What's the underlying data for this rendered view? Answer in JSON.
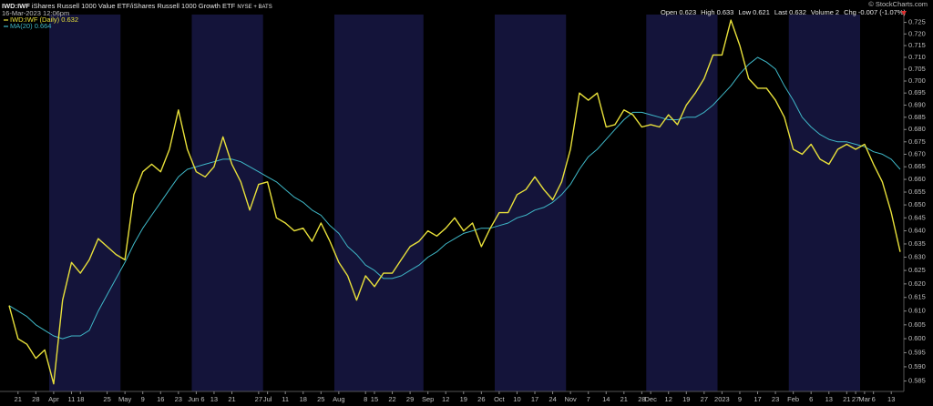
{
  "chart_data": {
    "type": "line",
    "symbol": "IWD:IWF",
    "title": "iShares Russell 1000 Value ETF/iShares Russell 1000 Growth ETF",
    "exchange": "NYSE + BATS",
    "date": "16-Mar-2023 12:06pm",
    "copyright": "© StockCharts.com",
    "quote": [
      {
        "label": "Open",
        "value": 0.623
      },
      {
        "label": "High",
        "value": 0.633
      },
      {
        "label": "Low",
        "value": 0.621
      },
      {
        "label": "Last",
        "value": 0.632
      },
      {
        "label": "Volume",
        "value": 2
      },
      {
        "label": "Chg",
        "value": "-0.007 (-1.07%)"
      }
    ],
    "log_scale": true,
    "band_color": "#14143a",
    "categories": [
      null,
      "21",
      null,
      "28",
      null,
      "Apr",
      null,
      "11",
      "18",
      null,
      null,
      "25",
      null,
      "May",
      null,
      "9",
      null,
      "16",
      null,
      "23",
      null,
      "Jun 6",
      null,
      "13",
      null,
      "21",
      null,
      null,
      "27",
      "Jul",
      null,
      "11",
      null,
      "18",
      null,
      "25",
      null,
      "Aug",
      null,
      null,
      "8",
      "15",
      null,
      "22",
      null,
      "29",
      null,
      "Sep",
      null,
      "12",
      null,
      "19",
      null,
      "26",
      null,
      "Oct",
      null,
      "10",
      null,
      "17",
      null,
      "24",
      null,
      "Nov",
      null,
      "7",
      null,
      "14",
      null,
      "21",
      null,
      "28",
      "Dec",
      null,
      "12",
      null,
      "19",
      null,
      "27",
      null,
      "2023",
      null,
      "9",
      null,
      "17",
      null,
      "23",
      null,
      "Feb",
      null,
      "6",
      null,
      "13",
      null,
      "21",
      "27",
      "Mar",
      "6",
      null,
      "13",
      null
    ],
    "series": [
      {
        "name": "IWD:IWF (Daily)",
        "last": 0.632,
        "color": "#e8e03a",
        "values": [
          0.612,
          0.6,
          0.598,
          0.593,
          0.596,
          0.584,
          0.614,
          0.628,
          0.624,
          0.629,
          0.637,
          0.634,
          0.631,
          0.629,
          0.654,
          0.663,
          0.666,
          0.663,
          0.672,
          0.688,
          0.672,
          0.663,
          0.661,
          0.665,
          0.677,
          0.666,
          0.659,
          0.648,
          0.658,
          0.659,
          0.645,
          0.643,
          0.64,
          0.641,
          0.636,
          0.643,
          0.636,
          0.628,
          0.623,
          0.614,
          0.623,
          0.619,
          0.624,
          0.624,
          0.629,
          0.634,
          0.636,
          0.64,
          0.638,
          0.641,
          0.645,
          0.64,
          0.643,
          0.634,
          0.641,
          0.647,
          0.647,
          0.654,
          0.656,
          0.661,
          0.656,
          0.652,
          0.659,
          0.672,
          0.695,
          0.692,
          0.695,
          0.681,
          0.682,
          0.688,
          0.686,
          0.681,
          0.682,
          0.681,
          0.686,
          0.682,
          0.69,
          0.695,
          0.701,
          0.711,
          0.711,
          0.726,
          0.715,
          0.701,
          0.697,
          0.697,
          0.692,
          0.685,
          0.672,
          0.67,
          0.674,
          0.668,
          0.666,
          0.672,
          0.674,
          0.672,
          0.674,
          0.666,
          0.659,
          0.647,
          0.632
        ]
      },
      {
        "name": "MA(20)",
        "last": 0.664,
        "color": "#3fb8c8",
        "values": [
          0.612,
          0.61,
          0.608,
          0.605,
          0.603,
          0.601,
          0.6,
          0.601,
          0.601,
          0.603,
          0.61,
          0.616,
          0.622,
          0.628,
          0.635,
          0.641,
          0.646,
          0.651,
          0.656,
          0.661,
          0.664,
          0.665,
          0.666,
          0.667,
          0.668,
          0.668,
          0.667,
          0.665,
          0.663,
          0.661,
          0.659,
          0.656,
          0.653,
          0.651,
          0.648,
          0.646,
          0.642,
          0.639,
          0.634,
          0.631,
          0.627,
          0.625,
          0.622,
          0.622,
          0.623,
          0.625,
          0.627,
          0.63,
          0.632,
          0.635,
          0.637,
          0.639,
          0.64,
          0.641,
          0.641,
          0.642,
          0.643,
          0.645,
          0.646,
          0.648,
          0.649,
          0.651,
          0.654,
          0.658,
          0.664,
          0.669,
          0.672,
          0.676,
          0.68,
          0.684,
          0.687,
          0.687,
          0.686,
          0.685,
          0.684,
          0.684,
          0.685,
          0.685,
          0.687,
          0.69,
          0.694,
          0.698,
          0.703,
          0.707,
          0.71,
          0.708,
          0.705,
          0.698,
          0.692,
          0.685,
          0.681,
          0.678,
          0.676,
          0.675,
          0.675,
          0.674,
          0.673,
          0.671,
          0.67,
          0.668,
          0.664
        ]
      }
    ],
    "ylim": [
      0.582,
      0.728
    ],
    "yticks": [
      0.585,
      {
        "value": 0.59,
        "label": "0.590"
      },
      0.595,
      {
        "value": 0.6,
        "label": "0.600"
      },
      0.605,
      {
        "value": 0.61,
        "label": "0.610"
      },
      0.615,
      {
        "value": 0.62,
        "label": "0.620"
      },
      0.625,
      {
        "value": 0.63,
        "label": "0.630"
      },
      0.635,
      {
        "value": 0.64,
        "label": "0.640"
      },
      0.645,
      {
        "value": 0.65,
        "label": "0.650"
      },
      0.655,
      {
        "value": 0.66,
        "label": "0.660"
      },
      0.665,
      {
        "value": 0.67,
        "label": "0.670"
      },
      0.675,
      {
        "value": 0.68,
        "label": "0.680"
      },
      0.685,
      {
        "value": 0.69,
        "label": "0.690"
      },
      0.695,
      {
        "value": 0.7,
        "label": "0.700"
      },
      0.705,
      {
        "value": 0.71,
        "label": "0.710"
      },
      0.715,
      {
        "value": 0.72,
        "label": "0.720"
      },
      0.725
    ]
  }
}
